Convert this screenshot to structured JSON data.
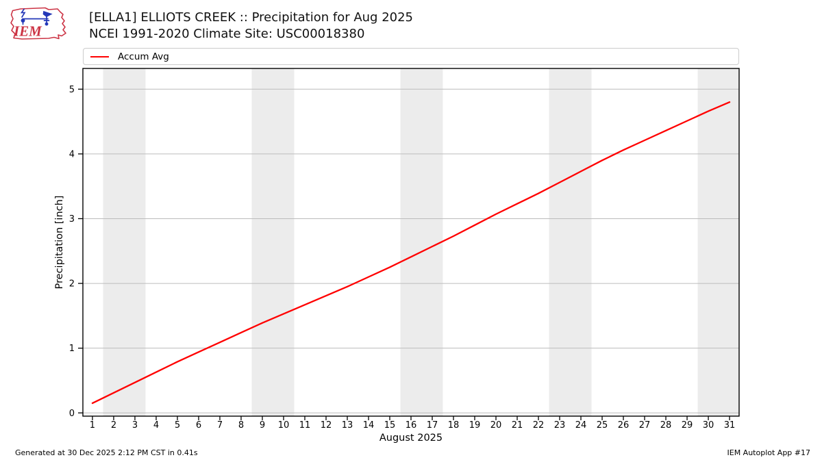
{
  "logo": {
    "text": "IEM"
  },
  "footer": {
    "generated": "Generated at 30 Dec 2025 2:12 PM CST in 0.41s",
    "app": "IEM Autoplot App #17"
  },
  "chart_data": {
    "type": "line",
    "title": "[ELLA1] ELLIOTS CREEK :: Precipitation for Aug 2025",
    "subtitle": "NCEI 1991-2020 Climate Site: USC00018380",
    "xlabel": "August 2025",
    "ylabel": "Precipitation [inch]",
    "xlim": [
      0.55,
      31.45
    ],
    "ylim": [
      -0.05,
      5.32
    ],
    "x_ticks": [
      1,
      2,
      3,
      4,
      5,
      6,
      7,
      8,
      9,
      10,
      11,
      12,
      13,
      14,
      15,
      16,
      17,
      18,
      19,
      20,
      21,
      22,
      23,
      24,
      25,
      26,
      27,
      28,
      29,
      30,
      31
    ],
    "y_ticks": [
      0,
      1,
      2,
      3,
      4,
      5
    ],
    "grid": "horizontal",
    "legend_position": "top",
    "weekend_shading_days": [
      [
        1.5,
        3.5
      ],
      [
        8.5,
        10.5
      ],
      [
        15.5,
        17.5
      ],
      [
        22.5,
        24.5
      ],
      [
        29.5,
        31.45
      ]
    ],
    "colors": {
      "band": "#ececec",
      "grid": "#bcbcbc",
      "axis": "#000000"
    },
    "series": [
      {
        "name": "Accum Avg",
        "color": "#ff0000",
        "x": [
          1,
          2,
          3,
          4,
          5,
          6,
          7,
          8,
          9,
          10,
          11,
          12,
          13,
          14,
          15,
          16,
          17,
          18,
          19,
          20,
          21,
          22,
          23,
          24,
          25,
          26,
          27,
          28,
          29,
          30,
          31
        ],
        "values": [
          0.15,
          0.31,
          0.47,
          0.63,
          0.79,
          0.94,
          1.09,
          1.24,
          1.39,
          1.53,
          1.67,
          1.81,
          1.95,
          2.1,
          2.25,
          2.41,
          2.57,
          2.73,
          2.9,
          3.07,
          3.23,
          3.39,
          3.56,
          3.73,
          3.9,
          4.06,
          4.21,
          4.36,
          4.51,
          4.66,
          4.8
        ]
      }
    ]
  }
}
